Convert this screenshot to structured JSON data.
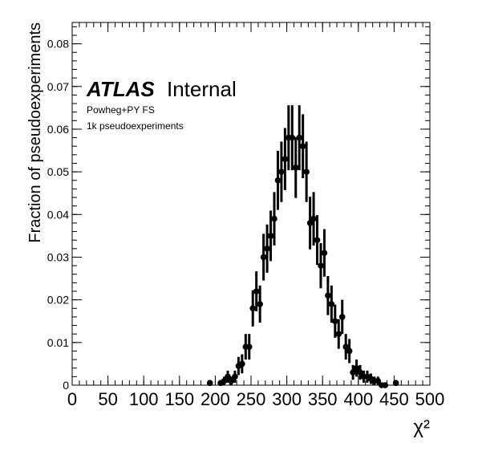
{
  "chart_data": {
    "type": "scatter",
    "title": "",
    "xlabel": "χ²",
    "ylabel": "Fraction of pseudoexperiments",
    "xlim": [
      0,
      500
    ],
    "ylim": [
      0,
      0.085
    ],
    "x_ticks": [
      0,
      50,
      100,
      150,
      200,
      250,
      300,
      350,
      400,
      450,
      500
    ],
    "x_tick_labels": [
      "0",
      "50",
      "100",
      "150",
      "200",
      "250",
      "300",
      "350",
      "400",
      "450",
      "500"
    ],
    "y_ticks": [
      0,
      0.01,
      0.02,
      0.03,
      0.04,
      0.05,
      0.06,
      0.07,
      0.08
    ],
    "y_tick_labels": [
      "0",
      "0.01",
      "0.02",
      "0.03",
      "0.04",
      "0.05",
      "0.06",
      "0.07",
      "0.08"
    ],
    "grid": false,
    "legend": {
      "experiment": "ATLAS",
      "status": "Internal",
      "lines": [
        "Powheg+PY FS",
        "1k pseudoexperiments"
      ]
    },
    "series": [
      {
        "x": [
          192.5,
          207.5,
          212.5,
          217.5,
          222.5,
          227.5,
          232.5,
          237.5,
          242.5,
          247.5,
          252.5,
          257.5,
          262.5,
          267.5,
          272.5,
          277.5,
          282.5,
          287.5,
          292.5,
          297.5,
          302.5,
          307.5,
          312.5,
          317.5,
          322.5,
          327.5,
          332.5,
          337.5,
          342.5,
          347.5,
          352.5,
          357.5,
          362.5,
          367.5,
          372.5,
          377.5,
          382.5,
          387.5,
          392.5,
          397.5,
          402.5,
          407.5,
          412.5,
          417.5,
          422.5,
          427.5,
          432.5,
          437.5,
          452.5
        ],
        "y": [
          0.0005,
          0.0005,
          0.001,
          0.002,
          0.001,
          0.002,
          0.0045,
          0.005,
          0.009,
          0.009,
          0.018,
          0.022,
          0.019,
          0.03,
          0.032,
          0.035,
          0.039,
          0.048,
          0.05,
          0.053,
          0.058,
          0.058,
          0.051,
          0.058,
          0.056,
          0.05,
          0.038,
          0.039,
          0.034,
          0.028,
          0.031,
          0.021,
          0.019,
          0.015,
          0.012,
          0.016,
          0.009,
          0.008,
          0.003,
          0.004,
          0.003,
          0.002,
          0.002,
          0.0015,
          0.001,
          0.001,
          0.0,
          0.0,
          0.0005
        ]
      }
    ]
  }
}
